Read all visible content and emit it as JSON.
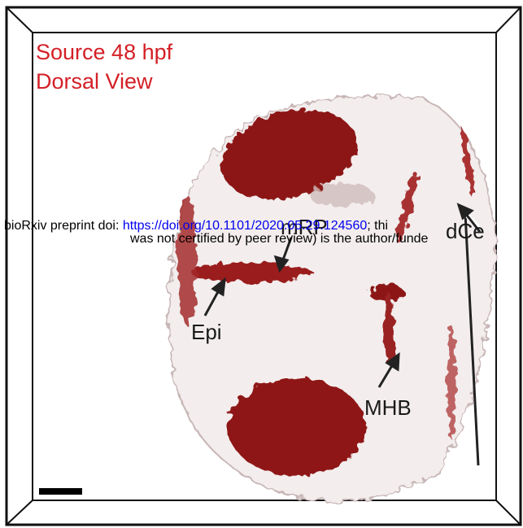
{
  "panel": {
    "title_lines": [
      "Source 48 hpf",
      "Dorsal View"
    ],
    "labels": [
      "mRP",
      "Epi",
      "MHB",
      "dCe"
    ]
  },
  "preprint_notice": {
    "prefix": "bioRxiv preprint doi: ",
    "link": "https://doi.org/10.1101/2020.05.29.124560",
    "suffix": "; thi",
    "line2": "was not certified by peer review) is the author/funde"
  }
}
